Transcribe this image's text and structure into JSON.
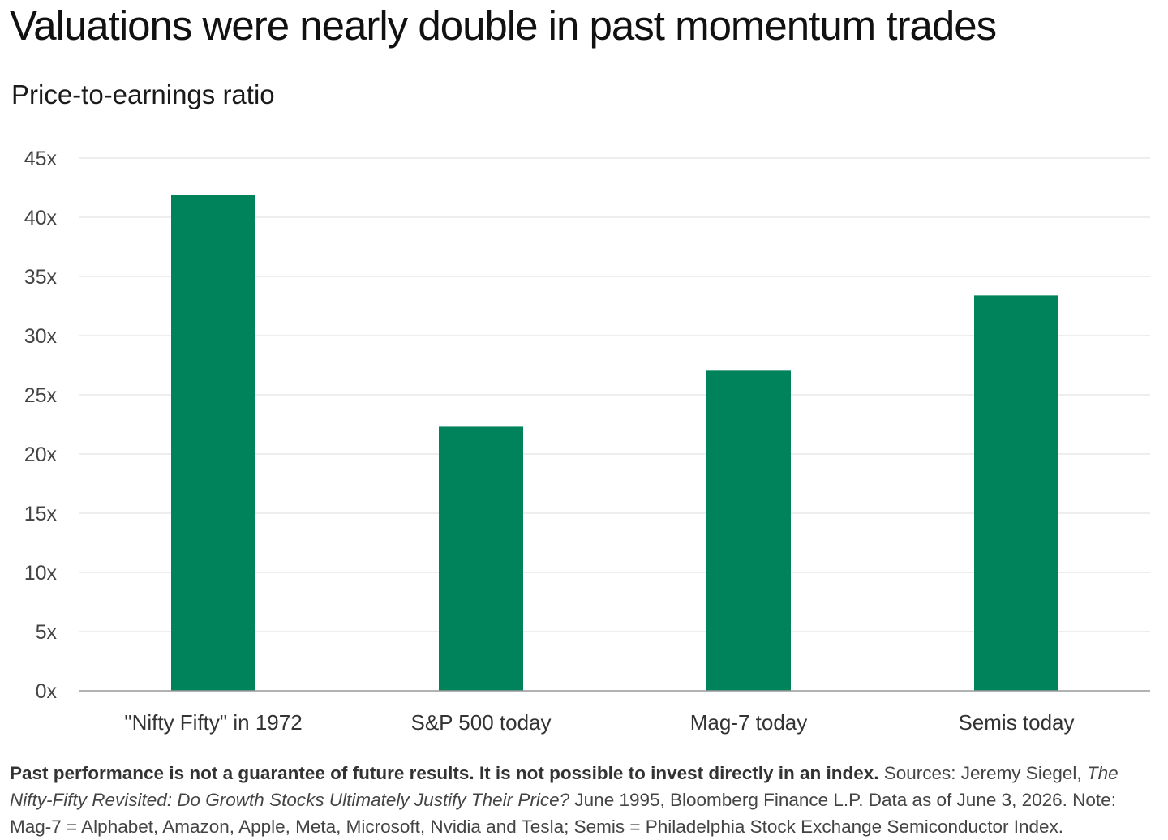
{
  "chart_data": {
    "type": "bar",
    "title": "Valuations were nearly double in past momentum trades",
    "subtitle": "Price-to-earnings ratio",
    "xlabel": "",
    "ylabel": "",
    "categories": [
      "\"Nifty Fifty\" in 1972",
      "S&P 500 today",
      "Mag-7 today",
      "Semis today"
    ],
    "values": [
      41.9,
      22.3,
      27.1,
      33.4
    ],
    "ylim": [
      0,
      45
    ],
    "yticks": [
      0,
      5,
      10,
      15,
      20,
      25,
      30,
      35,
      40,
      45
    ],
    "ytick_labels": [
      "0x",
      "5x",
      "10x",
      "15x",
      "20x",
      "25x",
      "30x",
      "35x",
      "40x",
      "45x"
    ],
    "grid": true,
    "bar_color": "#00835a",
    "gridline_color": "#e3e3e3",
    "axis_color": "#999999"
  },
  "footnote": {
    "bold": "Past performance is not a guarantee of future results. It is not possible to invest directly in an index.",
    "text1": " Sources: Jeremy Siegel, ",
    "italic": "The Nifty-Fifty Revisited: Do Growth Stocks Ultimately Justify Their Price?",
    "text2": " June 1995, Bloomberg Finance L.P. Data as of June 3, 2026. Note: Mag-7 = Alphabet, Amazon, Apple, Meta, Microsoft, Nvidia and Tesla; Semis = Philadelphia Stock Exchange Semiconductor Index."
  }
}
